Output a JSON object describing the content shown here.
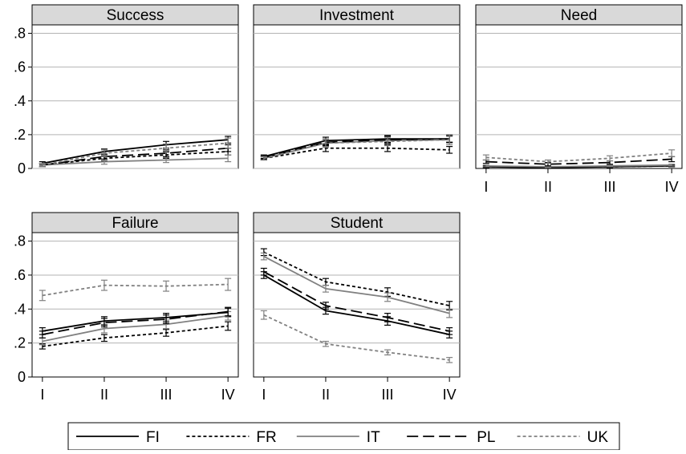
{
  "chart_data": {
    "type": "line",
    "layout": "small-multiples",
    "categories": [
      "I",
      "II",
      "III",
      "IV"
    ],
    "ylim": [
      0,
      0.85
    ],
    "y_ticks": [
      0,
      0.2,
      0.4,
      0.6,
      0.8
    ],
    "y_tick_labels": [
      "0",
      ".2",
      ".4",
      ".6",
      ".8"
    ],
    "grid": true,
    "legend_position": "bottom",
    "series_styles": [
      {
        "name": "FI",
        "color": "#000000",
        "dash": "solid"
      },
      {
        "name": "FR",
        "color": "#000000",
        "dash": "dotted"
      },
      {
        "name": "IT",
        "color": "#808080",
        "dash": "solid"
      },
      {
        "name": "PL",
        "color": "#000000",
        "dash": "long-dash"
      },
      {
        "name": "UK",
        "color": "#808080",
        "dash": "dotted"
      }
    ],
    "panels": [
      {
        "title": "Success",
        "series": [
          {
            "name": "FI",
            "values": [
              0.03,
              0.1,
              0.14,
              0.17
            ],
            "err": [
              0.01,
              0.015,
              0.02,
              0.02
            ]
          },
          {
            "name": "FR",
            "values": [
              0.02,
              0.06,
              0.08,
              0.1
            ],
            "err": [
              0.01,
              0.015,
              0.02,
              0.02
            ]
          },
          {
            "name": "IT",
            "values": [
              0.02,
              0.04,
              0.05,
              0.06
            ],
            "err": [
              0.01,
              0.015,
              0.015,
              0.02
            ]
          },
          {
            "name": "PL",
            "values": [
              0.02,
              0.07,
              0.09,
              0.12
            ],
            "err": [
              0.01,
              0.015,
              0.02,
              0.02
            ]
          },
          {
            "name": "UK",
            "values": [
              0.02,
              0.09,
              0.12,
              0.15
            ],
            "err": [
              0.01,
              0.02,
              0.025,
              0.03
            ]
          }
        ]
      },
      {
        "title": "Investment",
        "series": [
          {
            "name": "FI",
            "values": [
              0.07,
              0.165,
              0.175,
              0.175
            ],
            "err": [
              0.01,
              0.02,
              0.02,
              0.02
            ]
          },
          {
            "name": "FR",
            "values": [
              0.06,
              0.12,
              0.12,
              0.11
            ],
            "err": [
              0.01,
              0.02,
              0.02,
              0.02
            ]
          },
          {
            "name": "IT",
            "values": [
              0.06,
              0.15,
              0.165,
              0.17
            ],
            "err": [
              0.01,
              0.02,
              0.02,
              0.02
            ]
          },
          {
            "name": "PL",
            "values": [
              0.065,
              0.155,
              0.17,
              0.175
            ],
            "err": [
              0.01,
              0.02,
              0.02,
              0.02
            ]
          },
          {
            "name": "UK",
            "values": [
              0.06,
              0.15,
              0.16,
              0.17
            ],
            "err": [
              0.01,
              0.025,
              0.025,
              0.03
            ]
          }
        ]
      },
      {
        "title": "Need",
        "series": [
          {
            "name": "FI",
            "values": [
              0.01,
              0.005,
              0.01,
              0.015
            ],
            "err": [
              0.005,
              0.005,
              0.005,
              0.005
            ]
          },
          {
            "name": "FR",
            "values": [
              0.01,
              0.01,
              0.01,
              0.015
            ],
            "err": [
              0.005,
              0.005,
              0.005,
              0.005
            ]
          },
          {
            "name": "IT",
            "values": [
              0.015,
              0.01,
              0.015,
              0.02
            ],
            "err": [
              0.005,
              0.005,
              0.005,
              0.005
            ]
          },
          {
            "name": "PL",
            "values": [
              0.04,
              0.025,
              0.035,
              0.055
            ],
            "err": [
              0.01,
              0.01,
              0.01,
              0.015
            ]
          },
          {
            "name": "UK",
            "values": [
              0.065,
              0.04,
              0.06,
              0.09
            ],
            "err": [
              0.015,
              0.01,
              0.015,
              0.02
            ]
          }
        ]
      },
      {
        "title": "Failure",
        "series": [
          {
            "name": "FI",
            "values": [
              0.27,
              0.33,
              0.35,
              0.38
            ],
            "err": [
              0.02,
              0.025,
              0.025,
              0.025
            ]
          },
          {
            "name": "FR",
            "values": [
              0.18,
              0.23,
              0.26,
              0.3
            ],
            "err": [
              0.015,
              0.02,
              0.02,
              0.025
            ]
          },
          {
            "name": "IT",
            "values": [
              0.21,
              0.285,
              0.31,
              0.36
            ],
            "err": [
              0.02,
              0.025,
              0.025,
              0.025
            ]
          },
          {
            "name": "PL",
            "values": [
              0.25,
              0.32,
              0.34,
              0.385
            ],
            "err": [
              0.02,
              0.025,
              0.025,
              0.025
            ]
          },
          {
            "name": "UK",
            "values": [
              0.48,
              0.54,
              0.535,
              0.545
            ],
            "err": [
              0.03,
              0.03,
              0.03,
              0.035
            ]
          }
        ]
      },
      {
        "title": "Student",
        "series": [
          {
            "name": "FI",
            "values": [
              0.6,
              0.39,
              0.33,
              0.25
            ],
            "err": [
              0.02,
              0.02,
              0.025,
              0.02
            ]
          },
          {
            "name": "FR",
            "values": [
              0.735,
              0.56,
              0.5,
              0.42
            ],
            "err": [
              0.02,
              0.02,
              0.025,
              0.025
            ]
          },
          {
            "name": "IT",
            "values": [
              0.71,
              0.52,
              0.47,
              0.375
            ],
            "err": [
              0.02,
              0.02,
              0.025,
              0.025
            ]
          },
          {
            "name": "PL",
            "values": [
              0.62,
              0.42,
              0.35,
              0.27
            ],
            "err": [
              0.02,
              0.02,
              0.025,
              0.02
            ]
          },
          {
            "name": "UK",
            "values": [
              0.365,
              0.195,
              0.145,
              0.1
            ],
            "err": [
              0.025,
              0.015,
              0.015,
              0.015
            ]
          }
        ]
      }
    ]
  }
}
